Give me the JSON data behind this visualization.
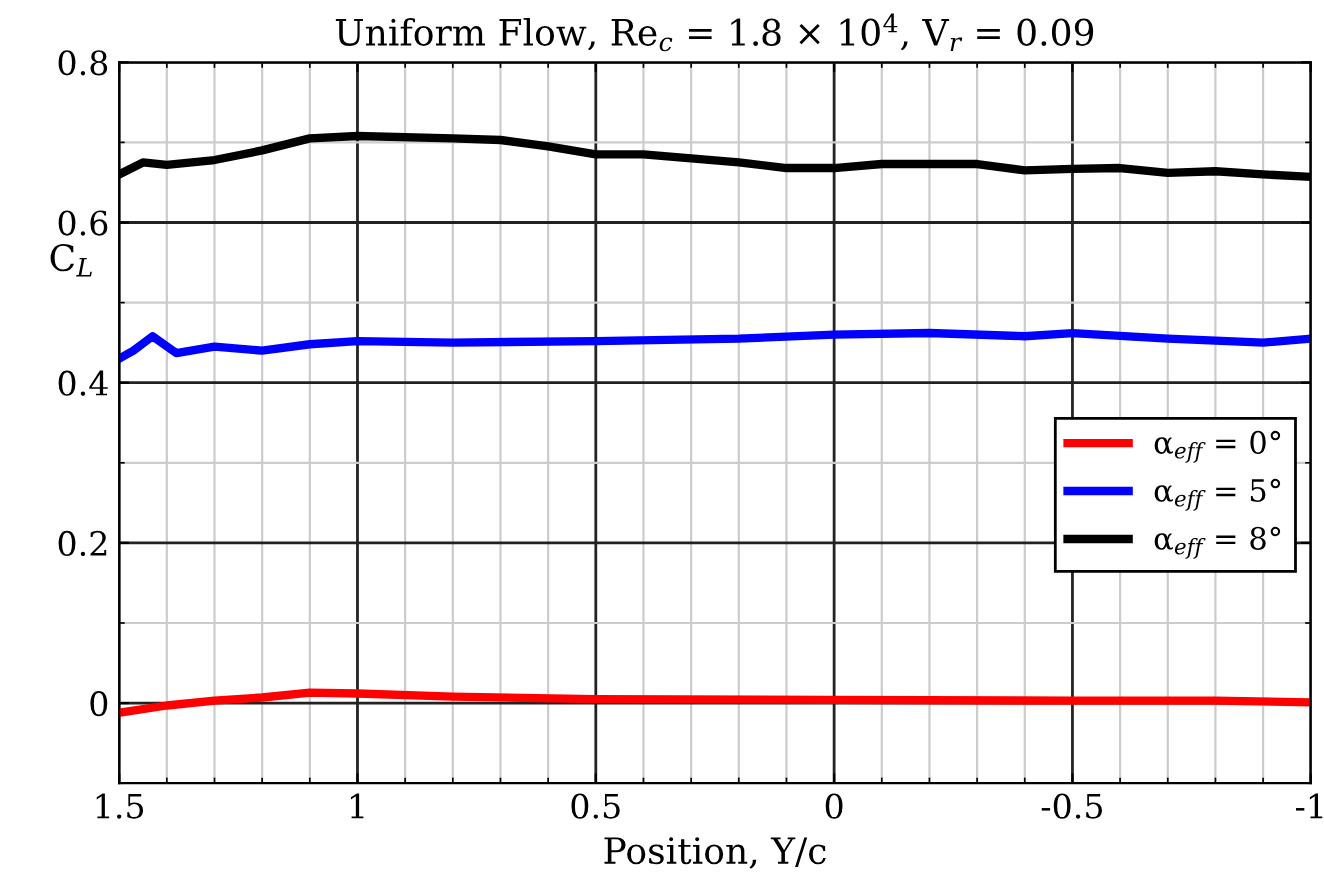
{
  "chart_data": {
    "type": "line",
    "title": "Uniform Flow, Re$_{c}$ = 1.8 × 10$^{4}$, V$_{r}$ = 0.09",
    "xlabel": "Position, Y/c",
    "ylabel": "C$_{L}$",
    "xlim": [
      1.5,
      -1
    ],
    "xticks": [
      1.5,
      1,
      0.5,
      0,
      -0.5,
      -1
    ],
    "ylim": [
      -0.1,
      0.8
    ],
    "yticks": [
      0,
      0.2,
      0.4,
      0.6,
      0.8
    ],
    "grid": true,
    "legend": "right",
    "line_style": "solid",
    "marker": "none",
    "series": [
      {
        "name": "α$_{eff}$ = 0°",
        "color": "#ff0000",
        "x": [
          1.5,
          1.4,
          1.3,
          1.2,
          1.1,
          1.0,
          0.8,
          0.5,
          0.0,
          -0.5,
          -0.8,
          -1.0
        ],
        "values": [
          -0.012,
          -0.003,
          0.003,
          0.007,
          0.013,
          0.012,
          0.008,
          0.005,
          0.004,
          0.003,
          0.003,
          0.001
        ]
      },
      {
        "name": "α$_{eff}$ = 5°",
        "color": "#0000ff",
        "x": [
          1.5,
          1.47,
          1.43,
          1.38,
          1.3,
          1.2,
          1.1,
          1.0,
          0.8,
          0.5,
          0.2,
          0.0,
          -0.2,
          -0.4,
          -0.5,
          -0.7,
          -0.9,
          -1.0
        ],
        "values": [
          0.43,
          0.44,
          0.458,
          0.437,
          0.445,
          0.44,
          0.448,
          0.452,
          0.45,
          0.452,
          0.455,
          0.46,
          0.462,
          0.458,
          0.462,
          0.455,
          0.45,
          0.455
        ]
      },
      {
        "name": "α$_{eff}$ = 8°",
        "color": "#000000",
        "x": [
          1.5,
          1.45,
          1.4,
          1.3,
          1.2,
          1.1,
          1.0,
          0.8,
          0.7,
          0.6,
          0.5,
          0.4,
          0.3,
          0.2,
          0.1,
          0.0,
          -0.1,
          -0.3,
          -0.4,
          -0.5,
          -0.6,
          -0.7,
          -0.8,
          -0.9,
          -1.0
        ],
        "values": [
          0.66,
          0.675,
          0.672,
          0.678,
          0.69,
          0.705,
          0.708,
          0.705,
          0.703,
          0.695,
          0.685,
          0.685,
          0.68,
          0.675,
          0.668,
          0.668,
          0.673,
          0.673,
          0.665,
          0.667,
          0.668,
          0.662,
          0.664,
          0.66,
          0.657
        ]
      }
    ]
  }
}
